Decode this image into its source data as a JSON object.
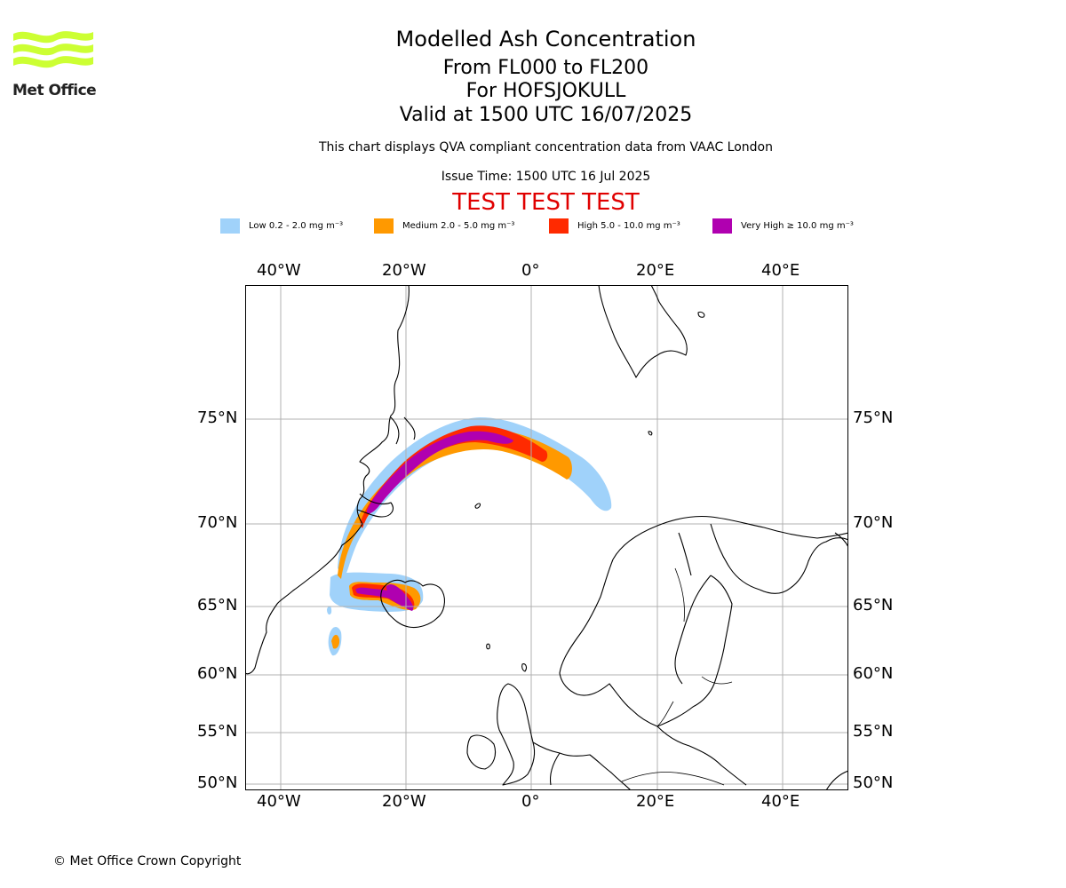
{
  "logo": {
    "text": "Met Office",
    "accent": "#ccff33"
  },
  "title": {
    "line1": "Modelled Ash Concentration",
    "line2": "From FL000 to FL200",
    "line3": "For HOFSJOKULL",
    "line4": "Valid at 1500 UTC 16/07/2025"
  },
  "subtitle": "This chart displays QVA compliant concentration data from VAAC London",
  "issue_time": "Issue Time: 1500 UTC 16 Jul 2025",
  "test_banner": "TEST TEST TEST",
  "legend": [
    {
      "label": "Low 0.2 - 2.0 mg m⁻³",
      "color": "#a0d2fa"
    },
    {
      "label": "Medium 2.0 - 5.0 mg m⁻³",
      "color": "#ff9900"
    },
    {
      "label": "High 5.0 - 10.0 mg m⁻³",
      "color": "#ff2a00"
    },
    {
      "label": "Very High ≥ 10.0 mg m⁻³",
      "color": "#b000b0"
    }
  ],
  "map": {
    "lon_ticks": [
      "40°W",
      "20°W",
      "0°",
      "20°E",
      "40°E"
    ],
    "lat_ticks": [
      "75°N",
      "70°N",
      "65°N",
      "60°N",
      "55°N",
      "50°N"
    ]
  },
  "copyright": "© Met Office Crown Copyright"
}
